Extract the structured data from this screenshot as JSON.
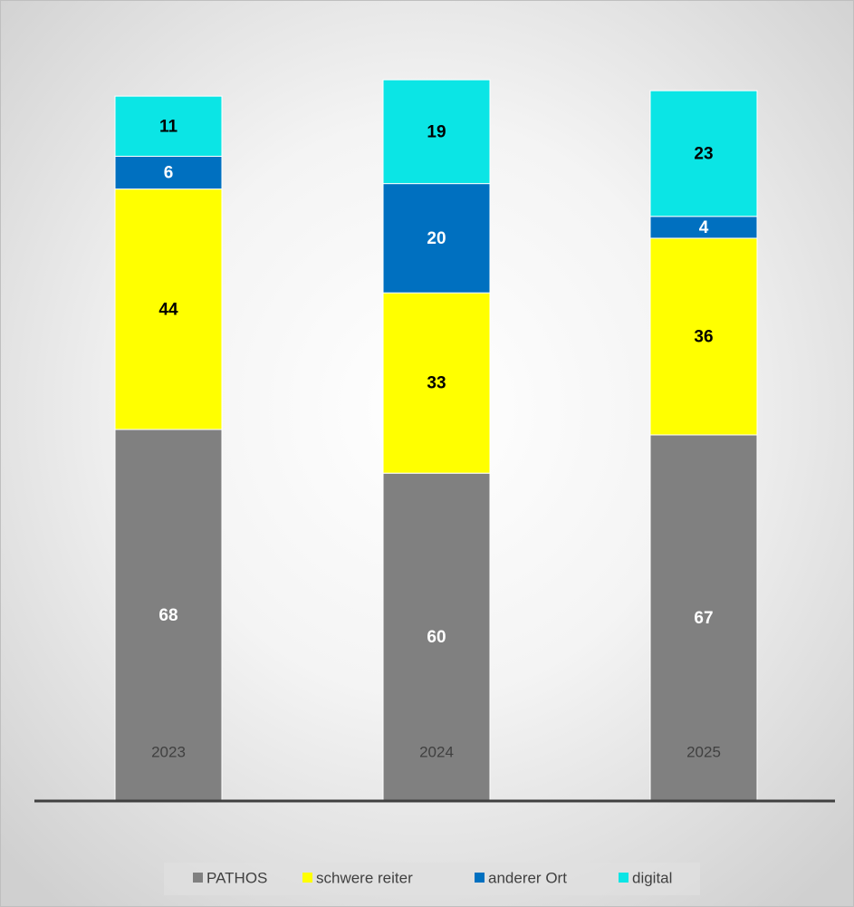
{
  "chart_data": {
    "type": "stacked_bar",
    "categories": [
      "2023",
      "2024",
      "2025"
    ],
    "series": [
      {
        "name": "PATHOS",
        "color": "#808080",
        "values": [
          68,
          60,
          67
        ]
      },
      {
        "name": "schwere reiter",
        "color": "#ffff00",
        "values": [
          44,
          33,
          36
        ]
      },
      {
        "name": "anderer Ort",
        "color": "#0070c0",
        "values": [
          6,
          20,
          4
        ]
      },
      {
        "name": "digital",
        "color": "#0be5e5",
        "values": [
          11,
          19,
          23
        ]
      }
    ],
    "legend": "bottom"
  }
}
